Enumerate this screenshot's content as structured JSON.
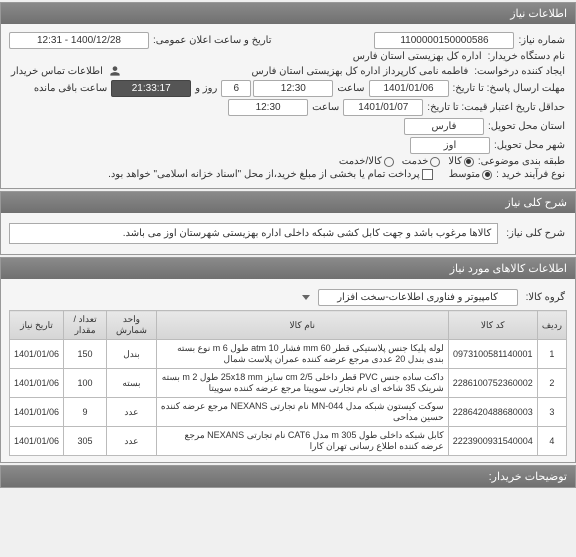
{
  "panels": {
    "info": {
      "title": "اطلاعات نیاز",
      "requestNo": {
        "label": "شماره نیاز:",
        "value": "1100000150000586"
      },
      "publicDate": {
        "label": "تاریخ و ساعت اعلان عمومی:",
        "value": "1400/12/28 - 12:31"
      },
      "buyerOrg": {
        "label": "نام دستگاه خریدار:",
        "value": "اداره کل بهزیستی استان فارس"
      },
      "requester": {
        "label": "ایجاد کننده درخواست:",
        "value": "فاطمه نامی کارپرداز اداره کل بهزیستی استان فارس"
      },
      "buyerInfo": {
        "label": "اطلاعات تماس خریدار",
        "icon": "contact-icon"
      },
      "deadline": {
        "label": "مهلت ارسال پاسخ: تا تاریخ:",
        "date": "1401/01/06",
        "timeLabel": "ساعت",
        "time": "12:30",
        "daysLabel": "روز و",
        "days": "6",
        "remainLabel": "ساعت باقی مانده",
        "remain": "21:33:17"
      },
      "validity": {
        "label": "حداقل تاریخ اعتبار قیمت: تا تاریخ:",
        "date": "1401/01/07",
        "timeLabel": "ساعت",
        "time": "12:30"
      },
      "deliveryState": {
        "label": "استان محل تحویل:",
        "value": "فارس"
      },
      "deliveryCity": {
        "label": "شهر محل تحویل:",
        "value": "اوز"
      },
      "classification": {
        "label": "طبقه بندی موضوعی:",
        "options": [
          {
            "label": "کالا",
            "checked": true
          },
          {
            "label": "خدمت",
            "checked": false
          },
          {
            "label": "کالا/خدمت",
            "checked": false
          }
        ]
      },
      "process": {
        "label": "نوع فرآیند خرید :",
        "options": [
          {
            "label": "متوسط",
            "selected": true
          }
        ],
        "note": "پرداخت تمام یا بخشی از مبلغ خرید،از محل \"اسناد خزانه اسلامی\" خواهد بود.",
        "noteChecked": false
      }
    },
    "needDesc": {
      "title": "شرح کلی نیاز",
      "label": "شرح کلی نیاز:",
      "value": "کالاها مرغوب باشد و جهت کابل کشی شبکه داخلی اداره بهزیستی شهرستان اوز می باشد."
    },
    "items": {
      "title": "اطلاعات کالاهای مورد نیاز",
      "groupLabel": "گروه کالا:",
      "groupValue": "کامپیوتر و فناوری اطلاعات-سخت افزار",
      "columns": [
        "ردیف",
        "کد کالا",
        "نام کالا",
        "واحد شمارش",
        "تعداد / مقدار",
        "تاریخ نیاز"
      ],
      "rows": [
        {
          "n": "1",
          "code": "0973100581140001",
          "name": "لوله پلیکا جنس پلاستیکی قطر 60 mm فشار 10 atm طول 6 m نوع بسته بندی بندل 20 عددی مرجع عرضه کننده عمران پلاست شمال",
          "unit": "بندل",
          "qty": "150",
          "date": "1401/01/06"
        },
        {
          "n": "2",
          "code": "2286100752360002",
          "name": "داکت ساده جنس PVC قطر داخلی cm 2/5 سایز 25x18 mm طول 2 m بسته شرینک 35 شاخه ای نام تجارتی سوپیتا مرجع عرضه کننده سوپیتا",
          "unit": "بسته",
          "qty": "100",
          "date": "1401/01/06"
        },
        {
          "n": "3",
          "code": "2286420488680003",
          "name": "سوکت کیستون شبکه مدل MN-044 نام تجارتی NEXANS مرجع عرضه کننده حسین مداحی",
          "unit": "عدد",
          "qty": "9",
          "date": "1401/01/06"
        },
        {
          "n": "4",
          "code": "2223900931540004",
          "name": "کابل شبکه داخلی طول 305 m مدل CAT6 نام تجارتی NEXANS مرجع عرضه کننده اطلاع رسانی تهران کارا",
          "unit": "عدد",
          "qty": "305",
          "date": "1401/01/06"
        }
      ]
    },
    "buyerNotes": {
      "title": "توضیحات خریدار:"
    }
  }
}
